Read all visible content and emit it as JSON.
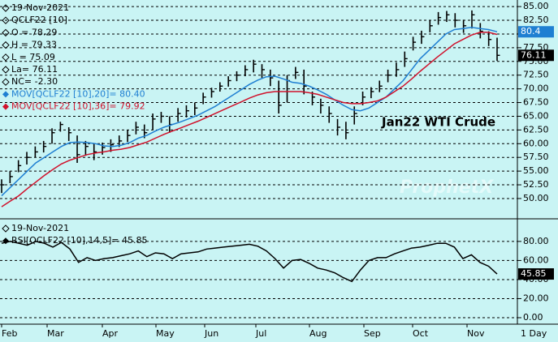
{
  "chart_data": [
    {
      "type": "ohlc",
      "info": [
        "19-Nov-2021",
        "QCLF22 [10]",
        "O = 78.29",
        "H = 79.33",
        "L = 75.09",
        "La= 76.11",
        "NC= -2.30"
      ],
      "annotation": "Jan22 WTI Crude",
      "watermark": "ProphetX",
      "months": [
        "Feb",
        "Mar",
        "Apr",
        "May",
        "Jun",
        "Jul",
        "Aug",
        "Sep",
        "Oct",
        "Nov"
      ],
      "interval": "1 Day",
      "color": "#000000",
      "close": [
        52.5,
        54.0,
        56.0,
        57.5,
        58.5,
        59.5,
        62.0,
        63.5,
        62.0,
        58.0,
        59.5,
        58.5,
        59.3,
        59.8,
        60.5,
        61.5,
        63.0,
        62.0,
        64.5,
        65.0,
        63.5,
        65.5,
        66.0,
        66.5,
        68.5,
        69.5,
        70.5,
        71.5,
        72.5,
        73.5,
        74.5,
        73.5,
        72.0,
        67.0,
        71.5,
        73.0,
        70.5,
        68.5,
        67.0,
        65.5,
        63.0,
        62.0,
        65.5,
        68.5,
        69.5,
        70.5,
        72.5,
        73.5,
        75.5,
        78.5,
        79.5,
        81.5,
        83.0,
        83.5,
        82.5,
        81.5,
        83.5,
        80.5,
        79.0,
        76.11
      ],
      "high": [
        53.5,
        55.0,
        57.0,
        58.5,
        59.5,
        60.5,
        62.8,
        64.0,
        63.0,
        61.5,
        60.5,
        60.0,
        60.2,
        60.8,
        61.5,
        62.5,
        64.0,
        63.5,
        65.5,
        65.8,
        65.0,
        66.5,
        67.0,
        67.5,
        69.3,
        70.2,
        71.2,
        72.3,
        73.2,
        74.3,
        75.3,
        74.5,
        73.5,
        71.5,
        72.5,
        74.0,
        73.5,
        69.5,
        68.2,
        66.8,
        64.5,
        64.0,
        66.8,
        69.5,
        70.3,
        71.5,
        73.5,
        74.8,
        76.8,
        79.5,
        80.6,
        82.5,
        84.0,
        84.2,
        83.8,
        82.6,
        84.3,
        82.0,
        80.5,
        79.33
      ],
      "low": [
        51.0,
        52.8,
        54.8,
        56.2,
        57.5,
        58.4,
        60.0,
        62.2,
        60.5,
        56.5,
        57.8,
        57.0,
        58.0,
        58.5,
        59.4,
        60.3,
        61.7,
        61.0,
        62.5,
        63.8,
        62.0,
        64.0,
        64.8,
        65.2,
        67.2,
        68.4,
        69.5,
        70.4,
        71.4,
        72.3,
        73.0,
        72.0,
        70.5,
        65.5,
        67.5,
        71.8,
        69.0,
        67.0,
        65.5,
        63.8,
        61.5,
        60.8,
        63.5,
        67.0,
        68.3,
        69.4,
        71.2,
        72.2,
        74.0,
        77.0,
        78.2,
        80.3,
        81.7,
        82.2,
        81.2,
        80.2,
        81.0,
        79.2,
        77.8,
        75.09
      ],
      "series": [
        {
          "name": "MOV[QCLF22 [10],20]= 80.40",
          "color": "#1f7fd2",
          "values": [
            50.5,
            52.0,
            53.5,
            55.0,
            56.5,
            57.5,
            58.5,
            59.5,
            60.2,
            60.3,
            60.2,
            60.0,
            59.6,
            59.5,
            59.7,
            60.2,
            61.0,
            61.5,
            62.3,
            63.0,
            63.5,
            64.0,
            64.6,
            65.2,
            66.0,
            66.8,
            67.8,
            68.8,
            69.8,
            70.8,
            71.6,
            72.2,
            72.3,
            71.8,
            71.2,
            71.0,
            70.5,
            69.8,
            69.0,
            68.0,
            67.0,
            66.2,
            66.0,
            66.5,
            67.5,
            68.5,
            70.0,
            71.5,
            73.5,
            75.5,
            77.0,
            78.5,
            80.0,
            80.8,
            81.0,
            81.2,
            81.0,
            80.8,
            80.4
          ]
        },
        {
          "name": "MOV[QCLF22 [10],36]= 79.92",
          "color": "#d0112b",
          "values": [
            48.5,
            49.5,
            50.5,
            51.8,
            53.0,
            54.2,
            55.3,
            56.3,
            57.0,
            57.5,
            58.0,
            58.3,
            58.5,
            58.8,
            59.0,
            59.3,
            59.8,
            60.3,
            61.0,
            61.7,
            62.3,
            62.9,
            63.5,
            64.1,
            64.8,
            65.5,
            66.2,
            66.9,
            67.6,
            68.3,
            68.9,
            69.3,
            69.5,
            69.5,
            69.5,
            69.5,
            69.3,
            69.0,
            68.5,
            68.0,
            67.5,
            67.3,
            67.3,
            67.5,
            67.8,
            68.5,
            69.5,
            70.5,
            71.8,
            73.2,
            74.5,
            75.8,
            77.0,
            78.2,
            79.0,
            79.8,
            80.3,
            80.3,
            79.92
          ]
        }
      ],
      "ylim": [
        46.3,
        86.2
      ],
      "yticks": [
        {
          "value": 85,
          "label": "85.00"
        },
        {
          "value": 82.5,
          "label": "82.50"
        },
        {
          "value": 80,
          "label": "80.00"
        },
        {
          "value": 77.5,
          "label": "77.50"
        },
        {
          "value": 75,
          "label": "75.00"
        },
        {
          "value": 72.5,
          "label": "72.50"
        },
        {
          "value": 70,
          "label": "70.00"
        },
        {
          "value": 67.5,
          "label": "67.50"
        },
        {
          "value": 65,
          "label": "65.00"
        },
        {
          "value": 62.5,
          "label": "62.50"
        },
        {
          "value": 60,
          "label": "60.00"
        },
        {
          "value": 57.5,
          "label": "57.50"
        },
        {
          "value": 55,
          "label": "55.00"
        },
        {
          "value": 52.5,
          "label": "52.50"
        },
        {
          "value": 50,
          "label": "50.00"
        }
      ],
      "grid": true
    },
    {
      "type": "line",
      "info": [
        "19-Nov-2021"
      ],
      "series": [
        {
          "name": "RSI[QCLF22 [10],14,5]= 45.85",
          "color": "#000000",
          "values": [
            78,
            80,
            78,
            76,
            80,
            78,
            74,
            79,
            72,
            58,
            63,
            60,
            62,
            63,
            65,
            67,
            70,
            64,
            68,
            67,
            62,
            67,
            68,
            69,
            72,
            73,
            74,
            75,
            76,
            77,
            75,
            70,
            62,
            52,
            60,
            61,
            57,
            52,
            50,
            47,
            42,
            38,
            50,
            60,
            63,
            63,
            67,
            70,
            73,
            74,
            76,
            78,
            78,
            74,
            62,
            66,
            58,
            54,
            45.85
          ]
        }
      ],
      "ylim": [
        -6.8,
        102
      ],
      "yticks": [
        {
          "value": 80,
          "label": "80.00"
        },
        {
          "value": 60,
          "label": "60.00"
        },
        {
          "value": 40,
          "label": "40.00"
        },
        {
          "value": 20,
          "label": "20.00"
        },
        {
          "value": 0,
          "label": "0.00"
        }
      ],
      "grid": true
    }
  ]
}
